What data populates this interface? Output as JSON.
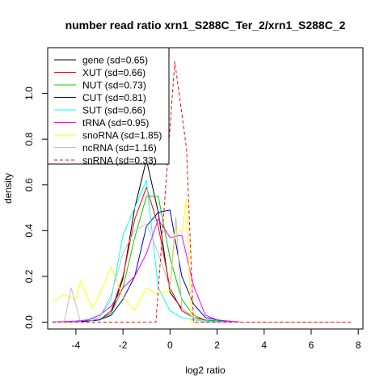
{
  "chart_data": {
    "type": "line",
    "title": "number read ratio xrn1_S288C_Ter_2/xrn1_S288C_2",
    "xlabel": "log2 ratio",
    "ylabel": "density",
    "xlim": [
      -5.2,
      8.2
    ],
    "ylim": [
      -0.03,
      1.2
    ],
    "xticks": [
      -4,
      -2,
      0,
      2,
      4,
      6,
      8
    ],
    "yticks": [
      0.0,
      0.2,
      0.4,
      0.6,
      0.8,
      1.0
    ],
    "grid": false,
    "legend_position": "top-left",
    "series": [
      {
        "name": "gene (sd=0.65)",
        "color": "#000000",
        "dash": "solid",
        "x": [
          -5.0,
          -4.0,
          -3.5,
          -3.0,
          -2.5,
          -2.0,
          -1.5,
          -1.0,
          -0.5,
          0.0,
          0.5,
          1.0,
          1.5,
          2.0,
          2.5,
          3.0,
          7.7
        ],
        "y": [
          0.0,
          0.002,
          0.005,
          0.01,
          0.04,
          0.19,
          0.5,
          0.71,
          0.48,
          0.13,
          0.06,
          0.02,
          0.01,
          0.005,
          0.002,
          0.0,
          0.0
        ]
      },
      {
        "name": "XUT (sd=0.66)",
        "color": "#ff0000",
        "dash": "solid",
        "x": [
          -5.0,
          -4.0,
          -3.5,
          -3.0,
          -2.5,
          -2.0,
          -1.5,
          -1.0,
          -0.5,
          0.0,
          0.5,
          1.0,
          1.5,
          2.0,
          2.5,
          3.0,
          7.7
        ],
        "y": [
          0.0,
          0.002,
          0.005,
          0.01,
          0.05,
          0.2,
          0.45,
          0.59,
          0.42,
          0.15,
          0.05,
          0.02,
          0.01,
          0.005,
          0.002,
          0.0,
          0.0
        ]
      },
      {
        "name": "NUT (sd=0.73)",
        "color": "#00cd00",
        "dash": "solid",
        "x": [
          -5.0,
          -4.0,
          -3.5,
          -3.0,
          -2.5,
          -2.0,
          -1.5,
          -1.0,
          -0.5,
          0.0,
          0.5,
          1.0,
          1.5,
          2.0,
          2.5,
          3.0,
          7.7
        ],
        "y": [
          0.0,
          0.002,
          0.005,
          0.01,
          0.04,
          0.15,
          0.37,
          0.55,
          0.55,
          0.28,
          0.1,
          0.03,
          0.01,
          0.005,
          0.002,
          0.0,
          0.0
        ]
      },
      {
        "name": "CUT (sd=0.81)",
        "color": "#0000cd",
        "dash": "solid",
        "x": [
          -5.0,
          -4.0,
          -3.5,
          -3.0,
          -2.5,
          -2.0,
          -1.5,
          -1.0,
          -0.5,
          0.0,
          0.5,
          1.0,
          1.5,
          2.0,
          2.5,
          3.0,
          7.7
        ],
        "y": [
          0.0,
          0.002,
          0.005,
          0.01,
          0.03,
          0.1,
          0.2,
          0.42,
          0.48,
          0.49,
          0.2,
          0.08,
          0.02,
          0.01,
          0.003,
          0.0,
          0.0
        ]
      },
      {
        "name": "SUT (sd=0.66)",
        "color": "#00ffff",
        "dash": "solid",
        "x": [
          -5.0,
          -4.0,
          -3.5,
          -3.0,
          -2.5,
          -2.0,
          -1.5,
          -1.0,
          -0.5,
          0.0,
          0.5,
          1.0,
          1.5,
          2.0,
          2.5,
          3.0,
          7.7
        ],
        "y": [
          0.0,
          0.003,
          0.01,
          0.02,
          0.1,
          0.38,
          0.5,
          0.62,
          0.15,
          0.05,
          0.02,
          0.01,
          0.005,
          0.002,
          0.001,
          0.0,
          0.0
        ]
      },
      {
        "name": "tRNA (sd=0.95)",
        "color": "#ff00ff",
        "dash": "solid",
        "x": [
          -5.0,
          -4.0,
          -3.5,
          -3.0,
          -2.5,
          -2.0,
          -1.5,
          -1.0,
          -0.5,
          0.0,
          0.5,
          1.0,
          1.5,
          2.0,
          2.5,
          3.0,
          7.7
        ],
        "y": [
          0.0,
          0.005,
          0.01,
          0.03,
          0.07,
          0.15,
          0.2,
          0.3,
          0.45,
          0.37,
          0.38,
          0.16,
          0.03,
          0.01,
          0.005,
          0.0,
          0.0
        ]
      },
      {
        "name": "snoRNA (sd=1.85)",
        "color": "#ffff00",
        "dash": "solid",
        "x": [
          -5.0,
          -4.5,
          -4.0,
          -3.8,
          -3.3,
          -3.0,
          -2.5,
          -2.0,
          -1.5,
          -1.0,
          -0.5,
          0.0,
          0.25,
          0.5,
          0.7,
          0.9,
          1.5,
          7.7
        ],
        "y": [
          0.09,
          0.12,
          0.1,
          0.18,
          0.06,
          0.12,
          0.24,
          0.11,
          0.05,
          0.15,
          0.12,
          0.14,
          0.42,
          0.39,
          0.54,
          0.0,
          0.0,
          0.0
        ]
      },
      {
        "name": "ncRNA (sd=1.16)",
        "color": "#bebebe",
        "dash": "solid",
        "x": [
          -5.0,
          -4.5,
          -4.2,
          -3.8,
          -3.5,
          -3.0,
          -2.5,
          -2.0,
          -1.5,
          -1.0,
          -0.5,
          0.0,
          0.25,
          0.5,
          1.0,
          1.5,
          7.7
        ],
        "y": [
          0.0,
          0.0,
          0.15,
          0.0,
          0.0,
          0.02,
          0.12,
          0.3,
          0.4,
          0.43,
          0.3,
          0.15,
          0.46,
          0.06,
          0.02,
          0.0,
          0.0
        ]
      },
      {
        "name": "snRNA (sd=0.33)",
        "color": "#ff0000",
        "dash": "dashed",
        "x": [
          -5.0,
          -1.0,
          -0.6,
          0.2,
          0.7,
          1.0,
          1.2,
          7.7
        ],
        "y": [
          0.0,
          0.0,
          0.0,
          1.14,
          0.76,
          0.0,
          0.0,
          0.0
        ]
      }
    ]
  }
}
